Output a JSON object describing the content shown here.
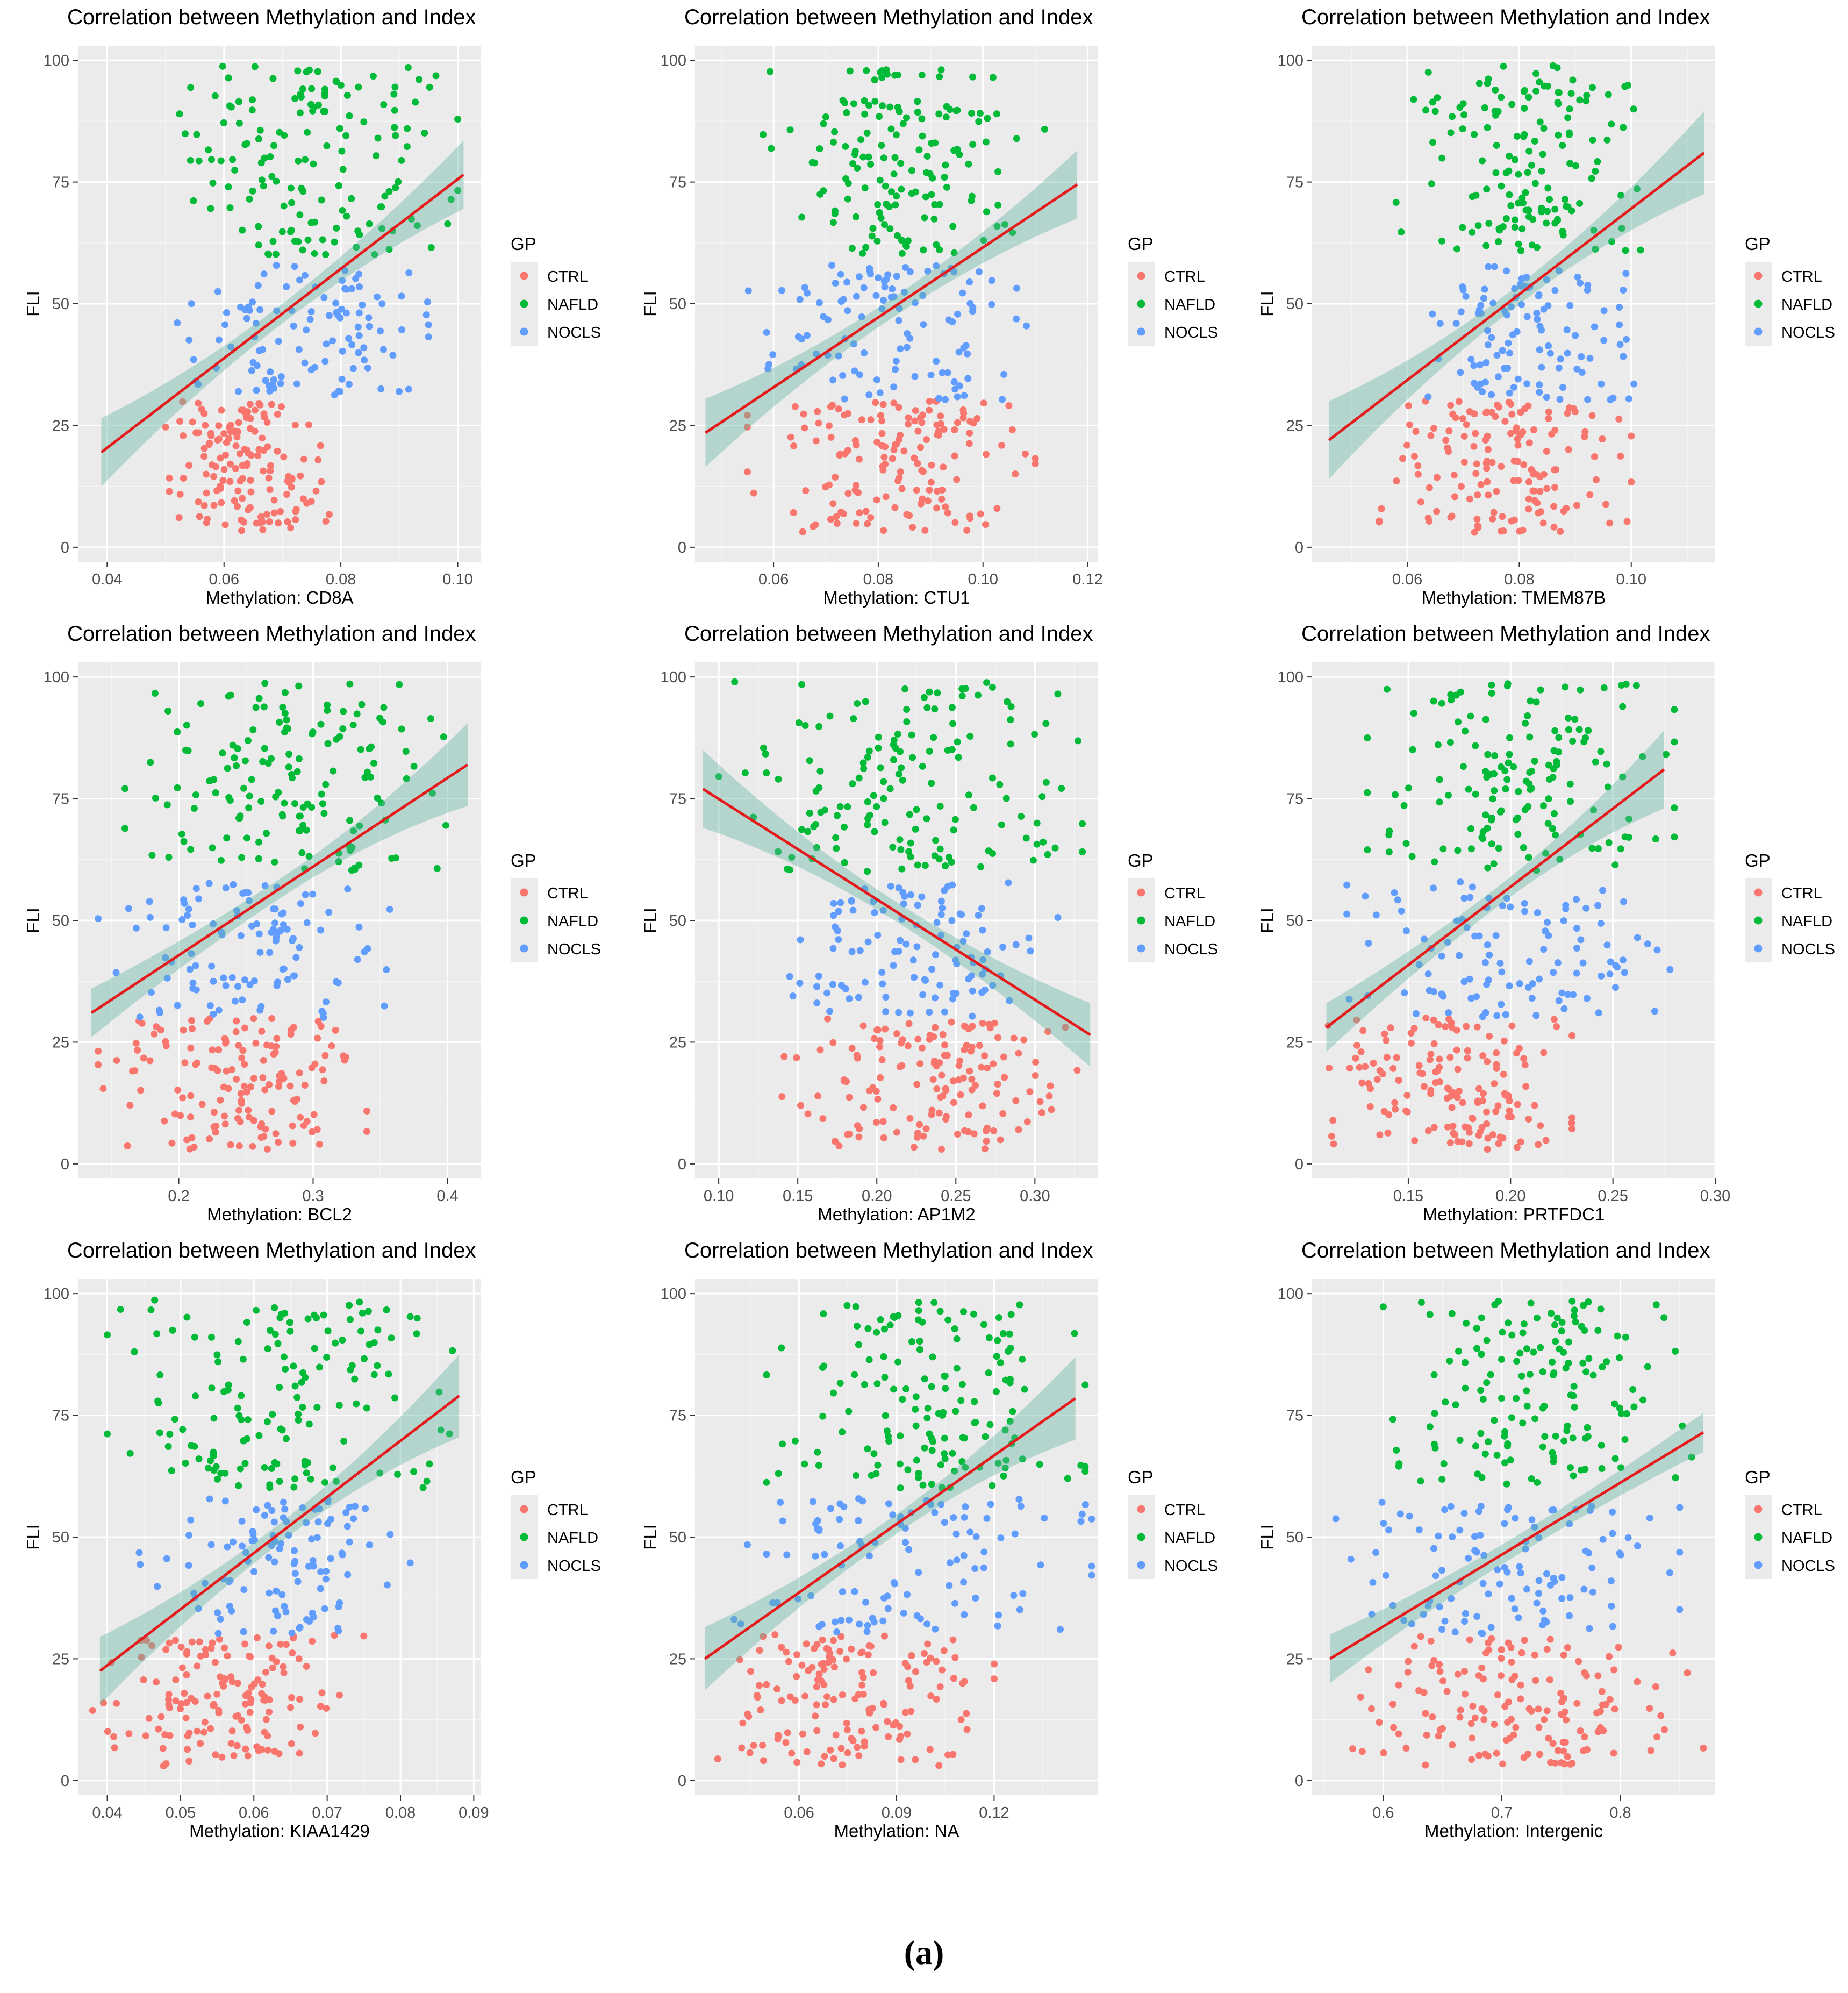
{
  "caption": "(a)",
  "colors": {
    "CTRL": "#F8766D",
    "NAFLD": "#00BA38",
    "NOCLS": "#619CFF",
    "panel_bg": "#EBEBEB",
    "grid_major": "#FFFFFF",
    "fit_line": "#E41A1C",
    "ci_band": "#5FB3A0"
  },
  "chart_data": [
    {
      "type": "scatter",
      "title": "Correlation between Methylation and Index",
      "xlabel": "Methylation: CD8A",
      "ylabel": "FLI",
      "xlim": [
        0.035,
        0.104
      ],
      "ylim": [
        -3,
        103
      ],
      "xticks": [
        0.04,
        0.06,
        0.08,
        0.1
      ],
      "xtick_labels": [
        "0.04",
        "0.06",
        "0.08",
        "0.10"
      ],
      "yticks": [
        0,
        25,
        50,
        75,
        100
      ],
      "ytick_labels": [
        "0",
        "25",
        "50",
        "75",
        "100"
      ],
      "legend": {
        "title": "GP",
        "entries": [
          "CTRL",
          "NAFLD",
          "NOCLS"
        ],
        "placement": "right"
      },
      "groups": {
        "CTRL": {
          "x": [
            0.05,
            0.078
          ],
          "y": [
            3,
            30
          ]
        },
        "NAFLD": {
          "x": [
            0.052,
            0.1
          ],
          "y": [
            60,
            99
          ]
        },
        "NOCLS": {
          "x": [
            0.052,
            0.095
          ],
          "y": [
            30,
            58
          ]
        }
      },
      "fit": {
        "x": [
          0.039,
          0.101
        ],
        "y": [
          19.5,
          76.5
        ],
        "ci_end": [
          7.0,
          7.0
        ],
        "ci_mid": 2.0
      }
    },
    {
      "type": "scatter",
      "title": "Correlation between Methylation and Index",
      "xlabel": "Methylation: CTU1",
      "ylabel": "FLI",
      "xlim": [
        0.045,
        0.122
      ],
      "ylim": [
        -3,
        103
      ],
      "xticks": [
        0.06,
        0.08,
        0.1,
        0.12
      ],
      "xtick_labels": [
        "0.06",
        "0.08",
        "0.10",
        "0.12"
      ],
      "yticks": [
        0,
        25,
        50,
        75,
        100
      ],
      "ytick_labels": [
        "0",
        "25",
        "50",
        "75",
        "100"
      ],
      "legend": {
        "title": "GP",
        "entries": [
          "CTRL",
          "NAFLD",
          "NOCLS"
        ],
        "placement": "right"
      },
      "groups": {
        "CTRL": {
          "x": [
            0.055,
            0.11
          ],
          "y": [
            3,
            30
          ]
        },
        "NAFLD": {
          "x": [
            0.058,
            0.112
          ],
          "y": [
            60,
            99
          ]
        },
        "NOCLS": {
          "x": [
            0.055,
            0.112
          ],
          "y": [
            30,
            58
          ]
        }
      },
      "fit": {
        "x": [
          0.047,
          0.118
        ],
        "y": [
          23.5,
          74.5
        ],
        "ci_end": [
          7.0,
          7.0
        ],
        "ci_mid": 2.0
      }
    },
    {
      "type": "scatter",
      "title": "Correlation between Methylation and Index",
      "xlabel": "Methylation: TMEM87B",
      "ylabel": "FLI",
      "xlim": [
        0.043,
        0.115
      ],
      "ylim": [
        -3,
        103
      ],
      "xticks": [
        0.06,
        0.08,
        0.1
      ],
      "xtick_labels": [
        "0.06",
        "0.08",
        "0.10"
      ],
      "yticks": [
        0,
        25,
        50,
        75,
        100
      ],
      "ytick_labels": [
        "0",
        "25",
        "50",
        "75",
        "100"
      ],
      "legend": {
        "title": "GP",
        "entries": [
          "CTRL",
          "NAFLD",
          "NOCLS"
        ],
        "placement": "right"
      },
      "groups": {
        "CTRL": {
          "x": [
            0.055,
            0.1
          ],
          "y": [
            3,
            30
          ]
        },
        "NAFLD": {
          "x": [
            0.058,
            0.102
          ],
          "y": [
            60,
            99
          ]
        },
        "NOCLS": {
          "x": [
            0.06,
            0.102
          ],
          "y": [
            30,
            58
          ]
        }
      },
      "fit": {
        "x": [
          0.046,
          0.113
        ],
        "y": [
          22.0,
          81.0
        ],
        "ci_end": [
          8.0,
          8.5
        ],
        "ci_mid": 2.0
      }
    },
    {
      "type": "scatter",
      "title": "Correlation between Methylation and Index",
      "xlabel": "Methylation: BCL2",
      "ylabel": "FLI",
      "xlim": [
        0.125,
        0.425
      ],
      "ylim": [
        -3,
        103
      ],
      "xticks": [
        0.2,
        0.3,
        0.4
      ],
      "xtick_labels": [
        "0.2",
        "0.3",
        "0.4"
      ],
      "yticks": [
        0,
        25,
        50,
        75,
        100
      ],
      "ytick_labels": [
        "0",
        "25",
        "50",
        "75",
        "100"
      ],
      "legend": {
        "title": "GP",
        "entries": [
          "CTRL",
          "NAFLD",
          "NOCLS"
        ],
        "placement": "right"
      },
      "groups": {
        "CTRL": {
          "x": [
            0.14,
            0.34
          ],
          "y": [
            3,
            30
          ]
        },
        "NAFLD": {
          "x": [
            0.16,
            0.4
          ],
          "y": [
            60,
            99
          ]
        },
        "NOCLS": {
          "x": [
            0.14,
            0.36
          ],
          "y": [
            30,
            58
          ]
        }
      },
      "fit": {
        "x": [
          0.135,
          0.415
        ],
        "y": [
          31.0,
          82.0
        ],
        "ci_end": [
          5.0,
          8.5
        ],
        "ci_mid": 2.0
      }
    },
    {
      "type": "scatter",
      "title": "Correlation between Methylation and Index",
      "xlabel": "Methylation: AP1M2",
      "ylabel": "FLI",
      "xlim": [
        0.085,
        0.34
      ],
      "ylim": [
        -3,
        103
      ],
      "xticks": [
        0.1,
        0.15,
        0.2,
        0.25,
        0.3
      ],
      "xtick_labels": [
        "0.10",
        "0.15",
        "0.20",
        "0.25",
        "0.30"
      ],
      "yticks": [
        0,
        25,
        50,
        75,
        100
      ],
      "ytick_labels": [
        "0",
        "25",
        "50",
        "75",
        "100"
      ],
      "legend": {
        "title": "GP",
        "entries": [
          "CTRL",
          "NAFLD",
          "NOCLS"
        ],
        "placement": "right"
      },
      "groups": {
        "CTRL": {
          "x": [
            0.14,
            0.33
          ],
          "y": [
            3,
            30
          ]
        },
        "NAFLD": {
          "x": [
            0.1,
            0.33
          ],
          "y": [
            60,
            99
          ]
        },
        "NOCLS": {
          "x": [
            0.11,
            0.32
          ],
          "y": [
            30,
            58
          ]
        }
      },
      "fit": {
        "x": [
          0.09,
          0.335
        ],
        "y": [
          77.0,
          26.5
        ],
        "ci_end": [
          8.0,
          6.5
        ],
        "ci_mid": 2.0
      }
    },
    {
      "type": "scatter",
      "title": "Correlation between Methylation and Index",
      "xlabel": "Methylation: PRTFDC1",
      "ylabel": "FLI",
      "xlim": [
        0.103,
        0.3
      ],
      "ylim": [
        -3,
        103
      ],
      "xticks": [
        0.15,
        0.2,
        0.25,
        0.3
      ],
      "xtick_labels": [
        "0.15",
        "0.20",
        "0.25",
        "0.30"
      ],
      "yticks": [
        0,
        25,
        50,
        75,
        100
      ],
      "ytick_labels": [
        "0",
        "25",
        "50",
        "75",
        "100"
      ],
      "legend": {
        "title": "GP",
        "entries": [
          "CTRL",
          "NAFLD",
          "NOCLS"
        ],
        "placement": "right"
      },
      "groups": {
        "CTRL": {
          "x": [
            0.11,
            0.23
          ],
          "y": [
            3,
            30
          ]
        },
        "NAFLD": {
          "x": [
            0.13,
            0.28
          ],
          "y": [
            60,
            99
          ]
        },
        "NOCLS": {
          "x": [
            0.12,
            0.28
          ],
          "y": [
            30,
            58
          ]
        }
      },
      "fit": {
        "x": [
          0.11,
          0.275
        ],
        "y": [
          28.0,
          81.0
        ],
        "ci_end": [
          5.0,
          8.0
        ],
        "ci_mid": 2.0
      }
    },
    {
      "type": "scatter",
      "title": "Correlation between Methylation and Index",
      "xlabel": "Methylation: KIAA1429",
      "ylabel": "FLI",
      "xlim": [
        0.036,
        0.091
      ],
      "ylim": [
        -3,
        103
      ],
      "xticks": [
        0.04,
        0.05,
        0.06,
        0.07,
        0.08,
        0.09
      ],
      "xtick_labels": [
        "0.04",
        "0.05",
        "0.06",
        "0.07",
        "0.08",
        "0.09"
      ],
      "yticks": [
        0,
        25,
        50,
        75,
        100
      ],
      "ytick_labels": [
        "0",
        "25",
        "50",
        "75",
        "100"
      ],
      "legend": {
        "title": "GP",
        "entries": [
          "CTRL",
          "NAFLD",
          "NOCLS"
        ],
        "placement": "right"
      },
      "groups": {
        "CTRL": {
          "x": [
            0.038,
            0.075
          ],
          "y": [
            3,
            30
          ]
        },
        "NAFLD": {
          "x": [
            0.04,
            0.088
          ],
          "y": [
            60,
            99
          ]
        },
        "NOCLS": {
          "x": [
            0.043,
            0.082
          ],
          "y": [
            30,
            58
          ]
        }
      },
      "fit": {
        "x": [
          0.039,
          0.088
        ],
        "y": [
          22.5,
          79.0
        ],
        "ci_end": [
          7.0,
          8.5
        ],
        "ci_mid": 2.0
      }
    },
    {
      "type": "scatter",
      "title": "Correlation between Methylation and Index",
      "xlabel": "Methylation: NA",
      "ylabel": "FLI",
      "xlim": [
        0.028,
        0.152
      ],
      "ylim": [
        -3,
        103
      ],
      "xticks": [
        0.06,
        0.09,
        0.12
      ],
      "xtick_labels": [
        "0.06",
        "0.09",
        "0.12"
      ],
      "yticks": [
        0,
        25,
        50,
        75,
        100
      ],
      "ytick_labels": [
        "0",
        "25",
        "50",
        "75",
        "100"
      ],
      "legend": {
        "title": "GP",
        "entries": [
          "CTRL",
          "NAFLD",
          "NOCLS"
        ],
        "placement": "right"
      },
      "groups": {
        "CTRL": {
          "x": [
            0.03,
            0.12
          ],
          "y": [
            3,
            30
          ]
        },
        "NAFLD": {
          "x": [
            0.05,
            0.148
          ],
          "y": [
            60,
            99
          ]
        },
        "NOCLS": {
          "x": [
            0.04,
            0.15
          ],
          "y": [
            30,
            58
          ]
        }
      },
      "fit": {
        "x": [
          0.031,
          0.145
        ],
        "y": [
          25.0,
          78.5
        ],
        "ci_end": [
          6.5,
          8.5
        ],
        "ci_mid": 2.0
      }
    },
    {
      "type": "scatter",
      "title": "Correlation between Methylation and Index",
      "xlabel": "Methylation: Intergenic",
      "ylabel": "FLI",
      "xlim": [
        0.54,
        0.88
      ],
      "ylim": [
        -3,
        103
      ],
      "xticks": [
        0.6,
        0.7,
        0.8
      ],
      "xtick_labels": [
        "0.6",
        "0.7",
        "0.8"
      ],
      "yticks": [
        0,
        25,
        50,
        75,
        100
      ],
      "ytick_labels": [
        "0",
        "25",
        "50",
        "75",
        "100"
      ],
      "legend": {
        "title": "GP",
        "entries": [
          "CTRL",
          "NAFLD",
          "NOCLS"
        ],
        "placement": "right"
      },
      "groups": {
        "CTRL": {
          "x": [
            0.55,
            0.87
          ],
          "y": [
            3,
            30
          ]
        },
        "NAFLD": {
          "x": [
            0.6,
            0.86
          ],
          "y": [
            60,
            99
          ]
        },
        "NOCLS": {
          "x": [
            0.56,
            0.85
          ],
          "y": [
            30,
            58
          ]
        }
      },
      "fit": {
        "x": [
          0.555,
          0.87
        ],
        "y": [
          25.0,
          71.5
        ],
        "ci_end": [
          5.0,
          4.0
        ],
        "ci_mid": 2.0
      }
    }
  ]
}
